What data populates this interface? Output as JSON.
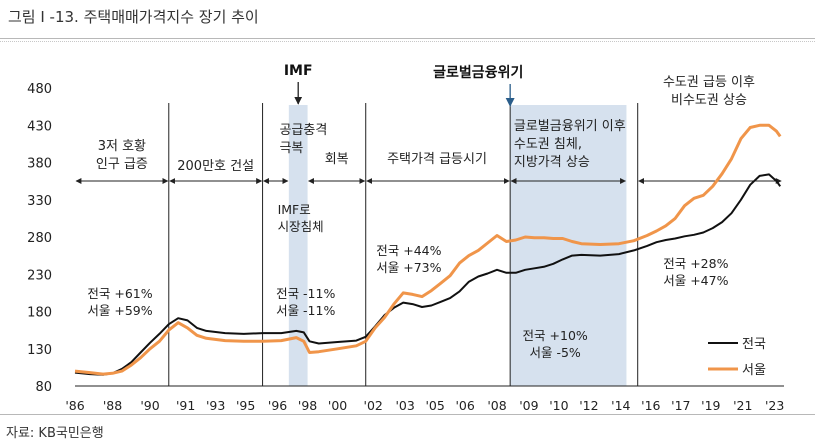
{
  "header": {
    "title": "그림 Ⅰ -13. 주택매매가격지수 장기 추이"
  },
  "footer": {
    "source": "자료: KB국민은행"
  },
  "chart_data": {
    "type": "line",
    "title": "",
    "xlabel": "",
    "ylabel": "",
    "ylim": [
      80,
      480
    ],
    "yticks": [
      80,
      130,
      180,
      230,
      280,
      330,
      380,
      430,
      480
    ],
    "xlim": [
      1986,
      2023.8
    ],
    "xticks": [
      {
        "x": 1986,
        "label": "'86"
      },
      {
        "x": 1988,
        "label": "'88"
      },
      {
        "x": 1990,
        "label": "'90"
      },
      {
        "x": 1991.9,
        "label": "'91"
      },
      {
        "x": 1993.5,
        "label": "'93"
      },
      {
        "x": 1995.1,
        "label": "'95"
      },
      {
        "x": 1996.8,
        "label": "'96"
      },
      {
        "x": 1998.4,
        "label": "'98"
      },
      {
        "x": 2000,
        "label": "'00"
      },
      {
        "x": 2001.9,
        "label": "'02"
      },
      {
        "x": 2003.6,
        "label": "'03"
      },
      {
        "x": 2005.2,
        "label": "'05"
      },
      {
        "x": 2006.8,
        "label": "'06"
      },
      {
        "x": 2008.5,
        "label": "'08"
      },
      {
        "x": 2010.2,
        "label": "'09"
      },
      {
        "x": 2011.8,
        "label": "'10"
      },
      {
        "x": 2013.4,
        "label": "'12"
      },
      {
        "x": 2015.1,
        "label": "'14"
      },
      {
        "x": 2016.7,
        "label": "'16"
      },
      {
        "x": 2018.3,
        "label": "'17"
      },
      {
        "x": 2019.9,
        "label": "'19"
      },
      {
        "x": 2021.6,
        "label": "'21"
      },
      {
        "x": 2023.3,
        "label": "'23"
      }
    ],
    "legend": "bottom-right",
    "series": [
      {
        "name": "전국",
        "color": "#111111",
        "points": [
          [
            1986,
            98
          ],
          [
            1986.8,
            96
          ],
          [
            1987.5,
            95
          ],
          [
            1988,
            97
          ],
          [
            1988.5,
            103
          ],
          [
            1989,
            112
          ],
          [
            1989.5,
            125
          ],
          [
            1990,
            138
          ],
          [
            1990.5,
            150
          ],
          [
            1991,
            163
          ],
          [
            1991.5,
            171
          ],
          [
            1992,
            168
          ],
          [
            1992.5,
            158
          ],
          [
            1993,
            154
          ],
          [
            1994,
            151
          ],
          [
            1995,
            150
          ],
          [
            1996,
            151
          ],
          [
            1997,
            151
          ],
          [
            1997.8,
            154
          ],
          [
            1998.2,
            152
          ],
          [
            1998.5,
            140
          ],
          [
            1999,
            137
          ],
          [
            2000,
            139
          ],
          [
            2001,
            141
          ],
          [
            2001.5,
            146
          ],
          [
            2002,
            160
          ],
          [
            2002.5,
            175
          ],
          [
            2003,
            185
          ],
          [
            2003.5,
            192
          ],
          [
            2004,
            190
          ],
          [
            2004.5,
            186
          ],
          [
            2005,
            188
          ],
          [
            2005.5,
            193
          ],
          [
            2006,
            198
          ],
          [
            2006.5,
            207
          ],
          [
            2007,
            220
          ],
          [
            2007.5,
            227
          ],
          [
            2008,
            231
          ],
          [
            2008.5,
            236
          ],
          [
            2009,
            232
          ],
          [
            2009.5,
            232
          ],
          [
            2010,
            236
          ],
          [
            2010.5,
            238
          ],
          [
            2011,
            240
          ],
          [
            2011.5,
            244
          ],
          [
            2012,
            250
          ],
          [
            2012.5,
            255
          ],
          [
            2013,
            256
          ],
          [
            2014,
            255
          ],
          [
            2015,
            257
          ],
          [
            2015.8,
            262
          ],
          [
            2016.5,
            268
          ],
          [
            2017,
            273
          ],
          [
            2017.5,
            276
          ],
          [
            2018,
            278
          ],
          [
            2018.5,
            281
          ],
          [
            2019,
            283
          ],
          [
            2019.5,
            286
          ],
          [
            2020,
            292
          ],
          [
            2020.5,
            300
          ],
          [
            2021,
            312
          ],
          [
            2021.5,
            330
          ],
          [
            2022,
            350
          ],
          [
            2022.5,
            362
          ],
          [
            2023,
            364
          ],
          [
            2023.4,
            355
          ],
          [
            2023.6,
            348
          ]
        ]
      },
      {
        "name": "서울",
        "color": "#f0954a",
        "points": [
          [
            1986,
            100
          ],
          [
            1986.8,
            98
          ],
          [
            1987.5,
            96
          ],
          [
            1988,
            97
          ],
          [
            1988.5,
            100
          ],
          [
            1989,
            108
          ],
          [
            1989.5,
            118
          ],
          [
            1990,
            130
          ],
          [
            1990.5,
            140
          ],
          [
            1991,
            155
          ],
          [
            1991.5,
            165
          ],
          [
            1992,
            158
          ],
          [
            1992.5,
            148
          ],
          [
            1993,
            144
          ],
          [
            1994,
            141
          ],
          [
            1995,
            140
          ],
          [
            1996,
            140
          ],
          [
            1997,
            141
          ],
          [
            1997.8,
            145
          ],
          [
            1998.2,
            140
          ],
          [
            1998.5,
            125
          ],
          [
            1999,
            126
          ],
          [
            2000,
            130
          ],
          [
            2001,
            134
          ],
          [
            2001.5,
            140
          ],
          [
            2002,
            158
          ],
          [
            2002.5,
            172
          ],
          [
            2003,
            190
          ],
          [
            2003.5,
            205
          ],
          [
            2004,
            203
          ],
          [
            2004.5,
            200
          ],
          [
            2005,
            208
          ],
          [
            2005.5,
            218
          ],
          [
            2006,
            228
          ],
          [
            2006.5,
            245
          ],
          [
            2007,
            255
          ],
          [
            2007.5,
            262
          ],
          [
            2008,
            272
          ],
          [
            2008.5,
            282
          ],
          [
            2009,
            274
          ],
          [
            2009.5,
            276
          ],
          [
            2010,
            280
          ],
          [
            2010.5,
            279
          ],
          [
            2011,
            279
          ],
          [
            2011.5,
            278
          ],
          [
            2012,
            278
          ],
          [
            2012.5,
            274
          ],
          [
            2013,
            271
          ],
          [
            2014,
            270
          ],
          [
            2015,
            271
          ],
          [
            2015.8,
            275
          ],
          [
            2016.5,
            282
          ],
          [
            2017,
            288
          ],
          [
            2017.5,
            295
          ],
          [
            2018,
            305
          ],
          [
            2018.5,
            322
          ],
          [
            2019,
            332
          ],
          [
            2019.5,
            336
          ],
          [
            2020,
            348
          ],
          [
            2020.5,
            365
          ],
          [
            2021,
            385
          ],
          [
            2021.5,
            412
          ],
          [
            2022,
            427
          ],
          [
            2022.5,
            430
          ],
          [
            2023,
            430
          ],
          [
            2023.4,
            422
          ],
          [
            2023.6,
            415
          ]
        ]
      }
    ],
    "shaded_periods": [
      {
        "from": 1997.4,
        "to": 1998.4,
        "color": "#d6e1ee"
      },
      {
        "from": 2009.2,
        "to": 2015.4,
        "color": "#d6e1ee"
      }
    ],
    "dividers": [
      1991,
      1996,
      2001.5,
      2009.2,
      2016
    ],
    "periods": [
      {
        "lines": [
          "3저 호황",
          "인구 급증"
        ],
        "from": 1986,
        "to": 1991,
        "color": "#222222"
      },
      {
        "lines": [
          "200만호 건설"
        ],
        "from": 1991,
        "to": 1996,
        "color": "#222222"
      },
      {
        "lines": [
          "공급충격",
          "극복"
        ],
        "from": 1996,
        "to": 1997.4,
        "color": "#222222"
      },
      {
        "lines": [
          "회복"
        ],
        "from": 1998.4,
        "to": 2001.5,
        "color": "#222222"
      },
      {
        "lines": [
          "주택가격 급등시기"
        ],
        "from": 2001.5,
        "to": 2009.2,
        "color": "#222222"
      },
      {
        "lines": [
          "글로벌금융위기 이후",
          "수도권 침체,",
          "지방가격 상승"
        ],
        "from": 2009.2,
        "to": 2015.4,
        "color": "#222222"
      },
      {
        "lines": [
          "수도권 급등 이후",
          "비수도권 상승"
        ],
        "from": 2016,
        "to": 2023.7,
        "color": "#222222"
      }
    ],
    "event_markers": [
      {
        "label": "IMF",
        "x": 1997.9
      },
      {
        "label": "글로벌금융위기",
        "x": 2009.2
      }
    ],
    "annotations": [
      {
        "lines": [
          "IMF로",
          "시장침체"
        ]
      },
      {
        "lines": [
          "전국 +61%",
          "서울 +59%"
        ]
      },
      {
        "lines": [
          "전국 -11%",
          "서울 -11%"
        ]
      },
      {
        "lines": [
          "전국 +44%",
          "서울 +73%"
        ]
      },
      {
        "lines": [
          "전국 +10%",
          "서울 -5%"
        ]
      },
      {
        "lines": [
          "전국 +28%",
          "서울 +47%"
        ]
      }
    ]
  }
}
